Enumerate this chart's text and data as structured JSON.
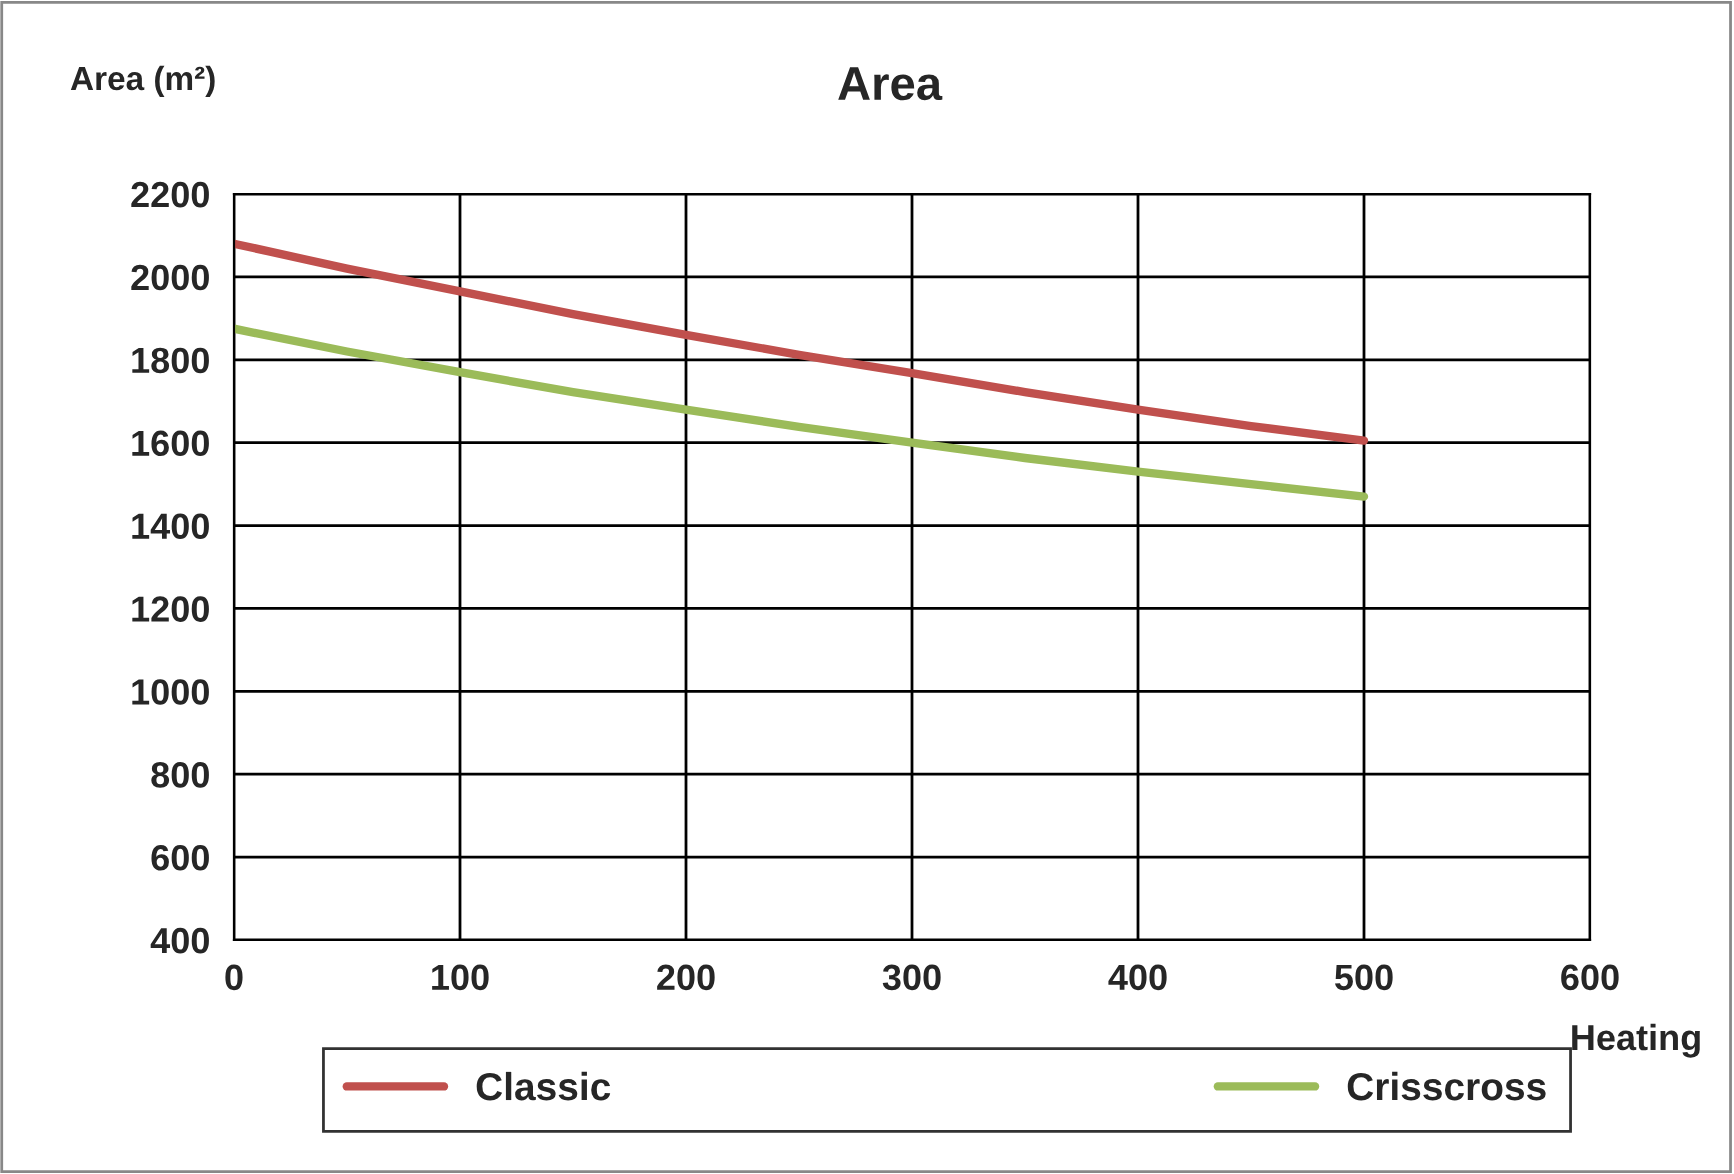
{
  "chart_data": {
    "type": "line",
    "title": "Area",
    "ylabel": "Area (m²)",
    "xlabel": "Heating",
    "x": [
      0,
      50,
      100,
      150,
      200,
      250,
      300,
      350,
      400,
      450,
      500
    ],
    "series": [
      {
        "name": "Classic",
        "color": "#c0504d",
        "values": [
          2080,
          2020,
          1965,
          1910,
          1860,
          1812,
          1768,
          1722,
          1680,
          1640,
          1605
        ]
      },
      {
        "name": "Crisscross",
        "color": "#9bbb59",
        "values": [
          1875,
          1820,
          1770,
          1722,
          1680,
          1638,
          1600,
          1563,
          1530,
          1500,
          1470
        ]
      }
    ],
    "xlim": [
      0,
      600
    ],
    "xticks": [
      0,
      100,
      200,
      300,
      400,
      500,
      600
    ],
    "ylim": [
      400,
      2200
    ],
    "yticks": [
      400,
      600,
      800,
      1000,
      1200,
      1400,
      1600,
      1800,
      2000,
      2200
    ],
    "grid": true,
    "legend": "bottom",
    "marker": "none",
    "line_style": "solid"
  }
}
